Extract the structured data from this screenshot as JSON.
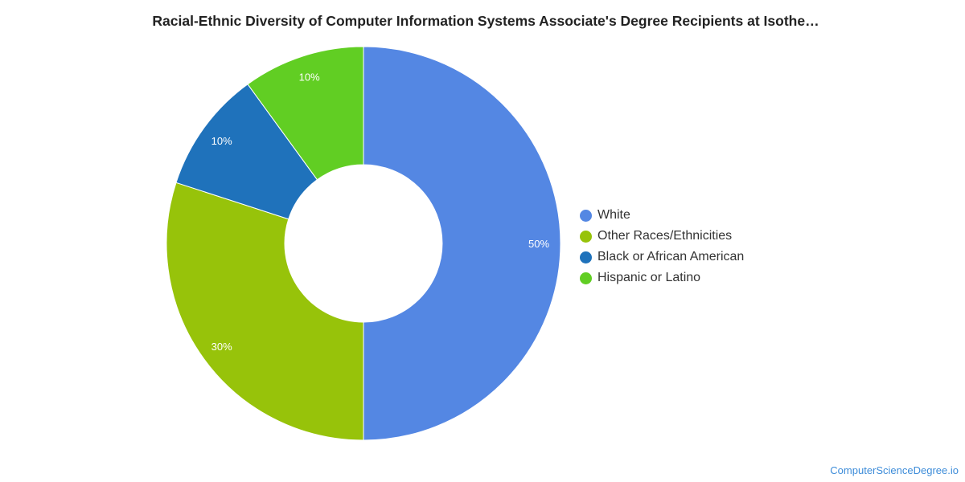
{
  "chart_data": {
    "type": "pie",
    "title": "Racial-Ethnic Diversity of Computer Information Systems Associate's Degree Recipients at Isothe…",
    "donut": true,
    "legend_position": "right",
    "slices": [
      {
        "name": "White",
        "value": 50,
        "label": "50%",
        "color": "#5487e3"
      },
      {
        "name": "Other Races/Ethnicities",
        "value": 30,
        "label": "30%",
        "color": "#97c30a"
      },
      {
        "name": "Black or African American",
        "value": 10,
        "label": "10%",
        "color": "#1f72bb"
      },
      {
        "name": "Hispanic or Latino",
        "value": 10,
        "label": "10%",
        "color": "#61ce23"
      }
    ]
  },
  "watermark": "ComputerScienceDegree.io"
}
